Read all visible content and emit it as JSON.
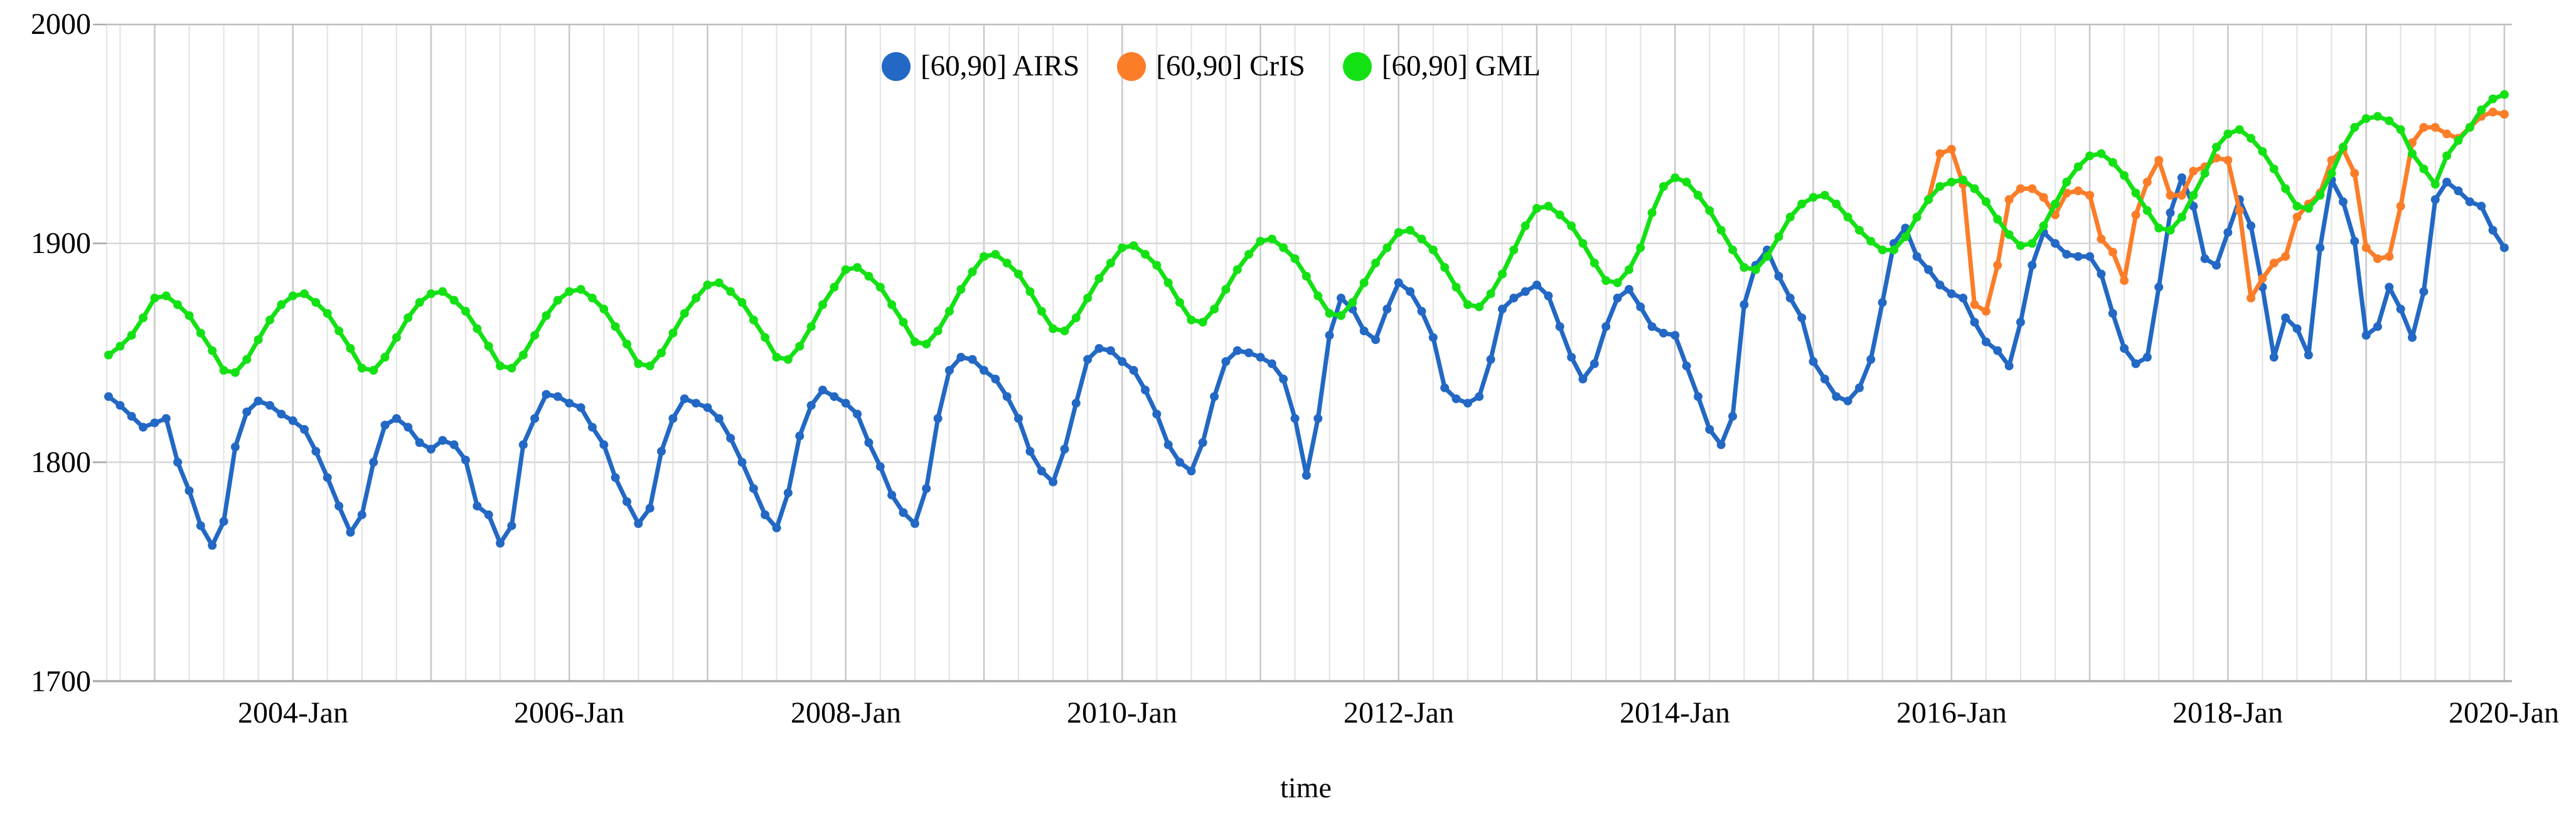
{
  "chart_data": {
    "type": "line",
    "title": "",
    "xlabel": "time",
    "ylabel": "",
    "ylim": [
      1700,
      2000
    ],
    "ytick_labels": [
      "2000",
      "1900",
      "1800",
      "1700"
    ],
    "ytick_values": [
      2000,
      1900,
      1800,
      1700
    ],
    "xtick_labels": [
      "2004-Jan",
      "2006-Jan",
      "2008-Jan",
      "2010-Jan",
      "2012-Jan",
      "2014-Jan",
      "2016-Jan",
      "2018-Jan",
      "2020-Jan"
    ],
    "x_start_month": "2002-09",
    "x_end_month": "2020-01",
    "x_resolution": "monthly",
    "grid": {
      "horizontal": true,
      "vertical_minor": "quarterly",
      "vertical_major": "yearly"
    },
    "legend_position": "top-center",
    "colors": {
      "background": "#ffffff",
      "grid_minor": "#e4e4e4",
      "grid_year": "#c9c9c9",
      "grid_horizontal": "#d8d8d8",
      "axis_line": "#a9a9a9",
      "text": "#000000"
    },
    "series": [
      {
        "name": "[60,90] AIRS",
        "color": "#2268c4",
        "start_month": "2002-09",
        "start_index": 0,
        "values": [
          1830,
          1826,
          1821,
          1816,
          1818,
          1820,
          1800,
          1787,
          1771,
          1762,
          1773,
          1807,
          1823,
          1828,
          1826,
          1822,
          1819,
          1815,
          1805,
          1793,
          1780,
          1768,
          1776,
          1800,
          1817,
          1820,
          1816,
          1809,
          1806,
          1810,
          1808,
          1801,
          1780,
          1776,
          1763,
          1771,
          1808,
          1820,
          1831,
          1830,
          1827,
          1825,
          1816,
          1808,
          1793,
          1782,
          1772,
          1779,
          1805,
          1820,
          1829,
          1827,
          1825,
          1820,
          1811,
          1800,
          1788,
          1776,
          1770,
          1786,
          1812,
          1826,
          1833,
          1830,
          1827,
          1822,
          1809,
          1798,
          1785,
          1777,
          1772,
          1788,
          1820,
          1842,
          1848,
          1847,
          1842,
          1838,
          1830,
          1820,
          1805,
          1796,
          1791,
          1806,
          1827,
          1847,
          1852,
          1851,
          1846,
          1842,
          1833,
          1822,
          1808,
          1800,
          1796,
          1809,
          1830,
          1846,
          1851,
          1850,
          1848,
          1845,
          1838,
          1820,
          1794,
          1820,
          1858,
          1875,
          1870,
          1860,
          1856,
          1870,
          1882,
          1878,
          1869,
          1857,
          1834,
          1829,
          1827,
          1830,
          1847,
          1870,
          1875,
          1878,
          1881,
          1876,
          1862,
          1848,
          1838,
          1845,
          1862,
          1875,
          1879,
          1871,
          1862,
          1859,
          1858,
          1844,
          1830,
          1815,
          1808,
          1821,
          1872,
          1890,
          1897,
          1885,
          1875,
          1866,
          1846,
          1838,
          1830,
          1828,
          1834,
          1847,
          1873,
          1900,
          1907,
          1894,
          1888,
          1881,
          1877,
          1875,
          1864,
          1855,
          1851,
          1844,
          1864,
          1890,
          1905,
          1900,
          1895,
          1894,
          1894,
          1886,
          1868,
          1852,
          1845,
          1848,
          1880,
          1914,
          1930,
          1917,
          1893,
          1890,
          1905,
          1920,
          1908,
          1880,
          1848,
          1866,
          1861,
          1849,
          1898,
          1929,
          1919,
          1901,
          1858,
          1862,
          1880,
          1870,
          1857,
          1878,
          1920,
          1928,
          1924,
          1919,
          1917,
          1906,
          1898
        ]
      },
      {
        "name": "[60,90] CrIS",
        "color": "#fb7d28",
        "start_month": "2015-11",
        "start_index": 158,
        "values": [
          1920,
          1941,
          1943,
          1927,
          1872,
          1869,
          1890,
          1920,
          1925,
          1925,
          1921,
          1913,
          1923,
          1924,
          1922,
          1902,
          1896,
          1883,
          1913,
          1928,
          1938,
          1922,
          1922,
          1933,
          1935,
          1939,
          1938,
          1915,
          1875,
          1884,
          1891,
          1894,
          1912,
          1918,
          1923,
          1938,
          1943,
          1932,
          1898,
          1893,
          1894,
          1917,
          1946,
          1953,
          1953,
          1950,
          1948,
          1953,
          1958,
          1960,
          1959
        ]
      },
      {
        "name": "[60,90] GML",
        "color": "#14e114",
        "start_month": "2002-09",
        "start_index": 0,
        "values": [
          1849,
          1853,
          1858,
          1866,
          1875,
          1876,
          1872,
          1867,
          1859,
          1851,
          1842,
          1841,
          1847,
          1856,
          1865,
          1872,
          1876,
          1877,
          1873,
          1868,
          1860,
          1852,
          1843,
          1842,
          1848,
          1857,
          1866,
          1873,
          1877,
          1878,
          1874,
          1869,
          1861,
          1853,
          1844,
          1843,
          1849,
          1858,
          1867,
          1874,
          1878,
          1879,
          1875,
          1870,
          1862,
          1854,
          1845,
          1844,
          1850,
          1859,
          1868,
          1875,
          1881,
          1882,
          1878,
          1873,
          1865,
          1857,
          1848,
          1847,
          1853,
          1862,
          1872,
          1880,
          1888,
          1889,
          1885,
          1880,
          1872,
          1864,
          1855,
          1854,
          1860,
          1869,
          1879,
          1887,
          1894,
          1895,
          1891,
          1886,
          1878,
          1869,
          1861,
          1860,
          1866,
          1875,
          1884,
          1891,
          1898,
          1899,
          1895,
          1890,
          1882,
          1873,
          1865,
          1864,
          1870,
          1879,
          1888,
          1895,
          1901,
          1902,
          1898,
          1893,
          1885,
          1876,
          1868,
          1867,
          1873,
          1882,
          1891,
          1898,
          1905,
          1906,
          1902,
          1897,
          1889,
          1880,
          1872,
          1871,
          1877,
          1886,
          1897,
          1908,
          1916,
          1917,
          1913,
          1908,
          1900,
          1891,
          1883,
          1882,
          1888,
          1898,
          1914,
          1926,
          1930,
          1928,
          1922,
          1915,
          1906,
          1897,
          1889,
          1888,
          1894,
          1903,
          1912,
          1918,
          1921,
          1922,
          1918,
          1912,
          1906,
          1901,
          1897,
          1897,
          1903,
          1912,
          1920,
          1926,
          1928,
          1929,
          1925,
          1919,
          1911,
          1904,
          1899,
          1900,
          1908,
          1918,
          1928,
          1935,
          1940,
          1941,
          1937,
          1931,
          1923,
          1915,
          1907,
          1906,
          1912,
          1922,
          1932,
          1944,
          1950,
          1952,
          1948,
          1942,
          1934,
          1925,
          1917,
          1916,
          1922,
          1932,
          1944,
          1953,
          1957,
          1958,
          1956,
          1952,
          1941,
          1934,
          1927,
          1940,
          1947,
          1953,
          1961,
          1966,
          1968
        ]
      }
    ]
  }
}
